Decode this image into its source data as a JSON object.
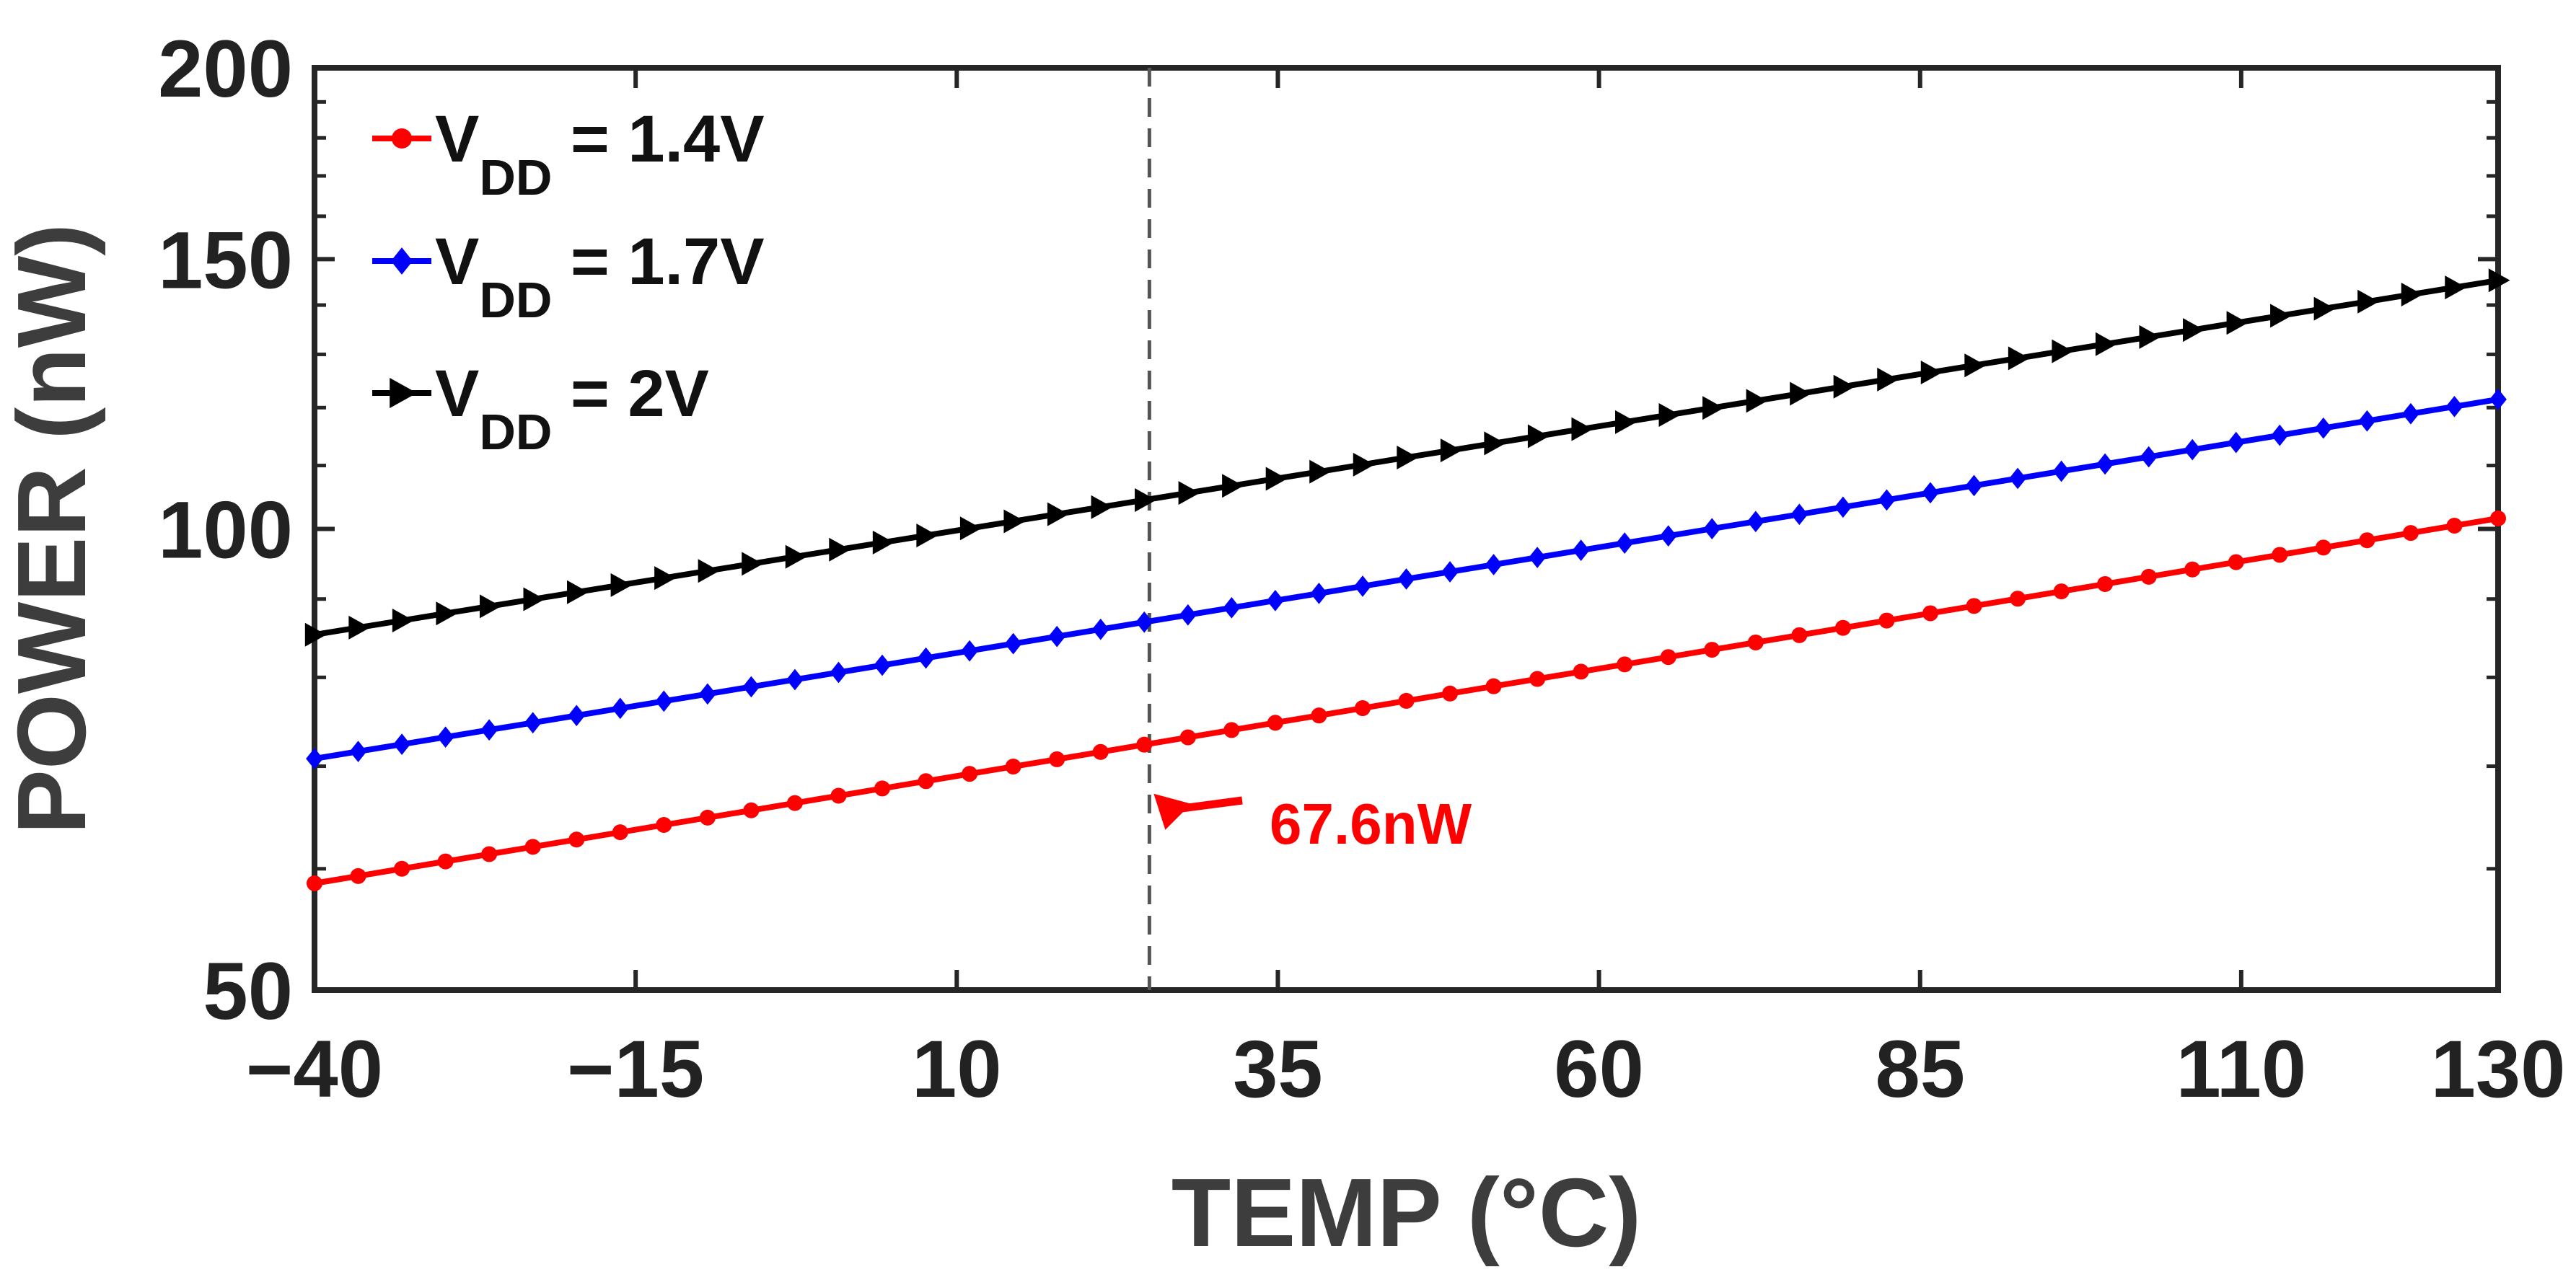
{
  "chart_data": {
    "type": "line",
    "title": "",
    "xlabel": "TEMP (°C)",
    "ylabel": "POWER (nW)",
    "xlim": [
      -40,
      130
    ],
    "ylim": [
      50,
      200
    ],
    "yscale": "log",
    "grid": false,
    "legend_position": "top-left",
    "x_ticks": [
      -40,
      -15,
      10,
      35,
      60,
      85,
      110,
      130
    ],
    "x_tick_labels": [
      "−40",
      "−15",
      "10",
      "35",
      "60",
      "85",
      "110",
      "130"
    ],
    "y_ticks": [
      50,
      100,
      150,
      200
    ],
    "y_tick_labels": [
      "50",
      "100",
      "150",
      "200"
    ],
    "x_step": 3.4,
    "series": [
      {
        "name_main": "V",
        "name_sub": "DD",
        "name_rest": " = 1.4V",
        "color": "#ff0000",
        "marker": "circle",
        "start_value": 58.7,
        "end_value": 101.6
      },
      {
        "name_main": "V",
        "name_sub": "DD",
        "name_rest": " = 1.7V",
        "color": "#0000ff",
        "marker": "diamond",
        "start_value": 70.8,
        "end_value": 121.5
      },
      {
        "name_main": "V",
        "name_sub": "DD",
        "name_rest": " = 2V",
        "color": "#000000",
        "marker": "triangle-right",
        "start_value": 85.3,
        "end_value": 145.3
      }
    ],
    "reference_line_x": 25,
    "annotation": {
      "text": "67.6nW",
      "x": 25,
      "y": 67.6,
      "color": "#ff0000"
    }
  }
}
